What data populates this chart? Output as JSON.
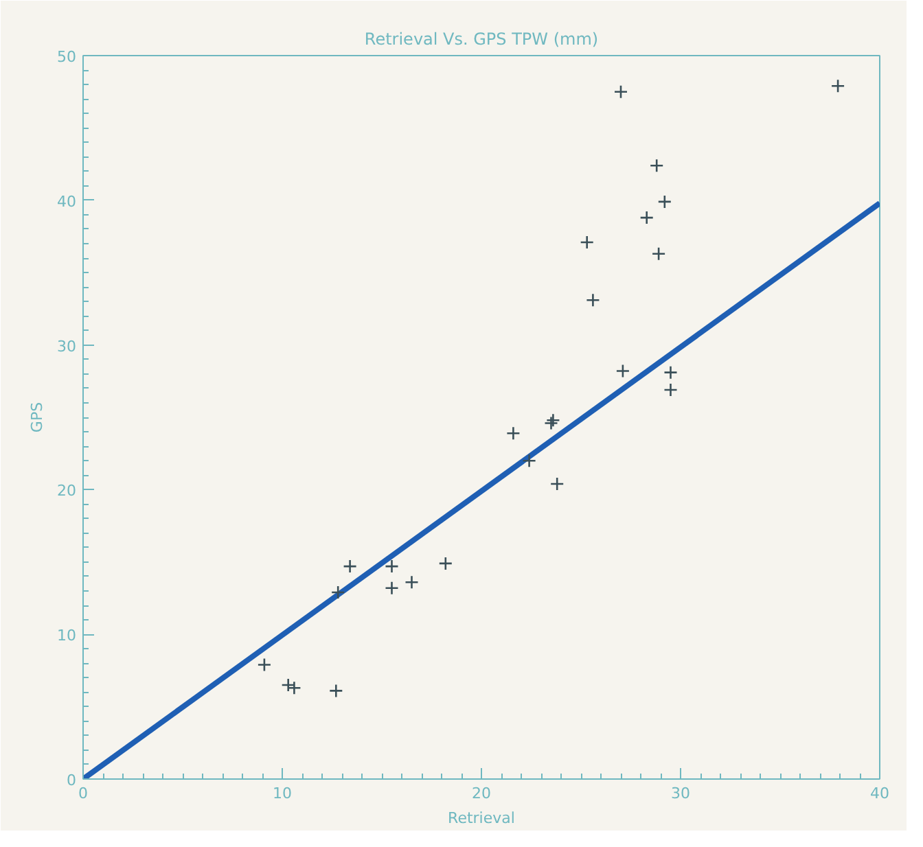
{
  "chart_data": {
    "type": "scatter",
    "title": "Retrieval Vs. GPS TPW (mm)",
    "xlabel": "Retrieval",
    "ylabel": "GPS",
    "xlim": [
      0,
      40
    ],
    "ylim": [
      0,
      50
    ],
    "xticks": [
      0,
      10,
      20,
      30,
      40
    ],
    "yticks": [
      0,
      10,
      20,
      30,
      40,
      50
    ],
    "grid": false,
    "series": [
      {
        "color": "#3a4f58",
        "marker": "cross",
        "x": [
          9.1,
          10.3,
          10.6,
          12.7,
          12.8,
          13.4,
          15.5,
          15.5,
          16.5,
          18.2,
          21.6,
          22.4,
          23.5,
          23.6,
          23.8,
          25.3,
          25.6,
          27.0,
          27.1,
          28.3,
          28.8,
          28.9,
          29.2,
          29.5,
          29.5,
          37.9
        ],
        "values": [
          7.9,
          6.5,
          6.3,
          6.1,
          12.9,
          14.7,
          14.7,
          13.2,
          13.6,
          14.9,
          23.9,
          22.0,
          24.6,
          24.8,
          20.4,
          37.1,
          33.1,
          47.5,
          28.2,
          38.8,
          42.4,
          36.3,
          39.9,
          28.1,
          26.9,
          47.9
        ]
      },
      {
        "type": "line",
        "marker": "none",
        "color": "#1f5fb4",
        "x": [
          0,
          40
        ],
        "values": [
          0,
          39.8
        ]
      }
    ]
  }
}
